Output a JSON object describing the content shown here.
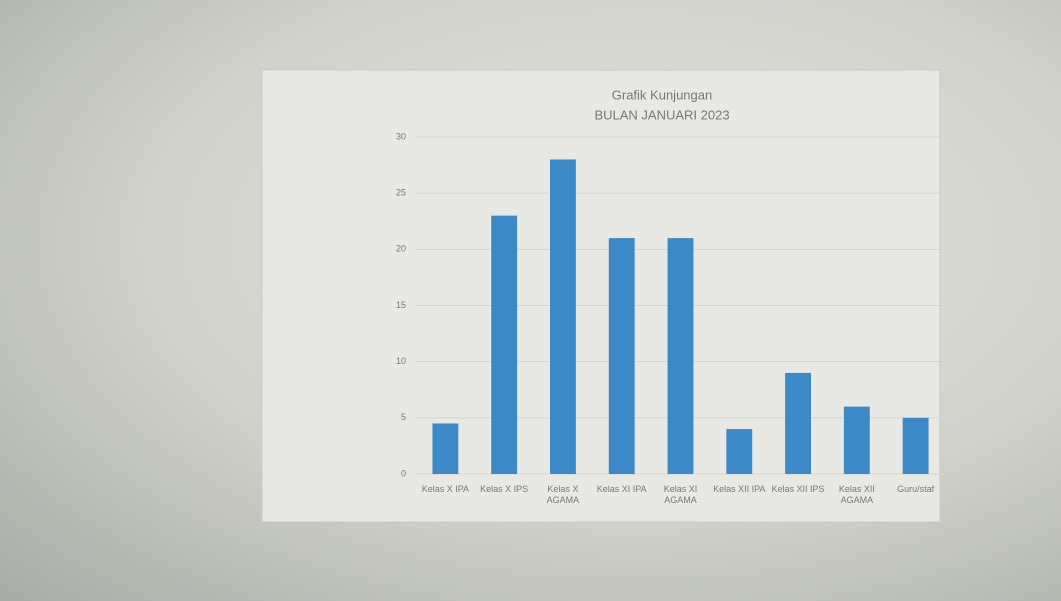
{
  "chart_data": {
    "type": "bar",
    "title": "Grafik Kunjungan",
    "subtitle": "BULAN JANUARI 2023",
    "categories": [
      "Kelas X IPA",
      "Kelas X IPS",
      "Kelas X AGAMA",
      "Kelas XI IPA",
      "Kelas XI AGAMA",
      "Kelas XII IPA",
      "Kelas XII IPS",
      "Kelas XII AGAMA",
      "Guru/staf"
    ],
    "values": [
      4.5,
      23,
      28,
      21,
      21,
      4,
      9,
      6,
      5
    ],
    "color": "#3d88c6",
    "ylim": [
      0,
      30
    ],
    "yticks": [
      0,
      5,
      10,
      15,
      20,
      25,
      30
    ],
    "grid": true
  }
}
